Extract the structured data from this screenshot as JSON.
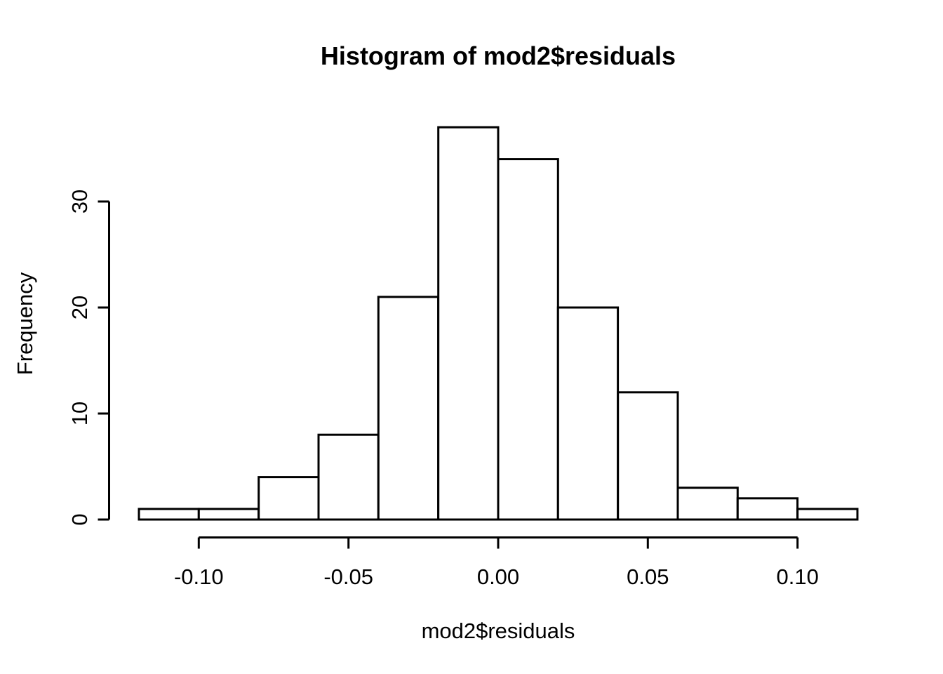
{
  "figure": {
    "background": "#ffffff"
  },
  "chart_data": {
    "type": "bar",
    "subtype": "histogram",
    "title": "Histogram of mod2$residuals",
    "xlabel": "mod2$residuals",
    "ylabel": "Frequency",
    "bin_edges": [
      -0.12,
      -0.1,
      -0.08,
      -0.06,
      -0.04,
      -0.02,
      0.0,
      0.02,
      0.04,
      0.06,
      0.08,
      0.1,
      0.12
    ],
    "counts": [
      1,
      1,
      4,
      8,
      21,
      37,
      34,
      20,
      12,
      3,
      2,
      1
    ],
    "xlim": [
      -0.12,
      0.12
    ],
    "ylim": [
      0,
      37
    ],
    "x_ticks": {
      "values": [
        -0.1,
        -0.05,
        0.0,
        0.05,
        0.1
      ],
      "labels": [
        "-0.10",
        "-0.05",
        "0.00",
        "0.05",
        "0.10"
      ]
    },
    "y_ticks": {
      "values": [
        0,
        10,
        20,
        30
      ],
      "labels": [
        "0",
        "10",
        "20",
        "30"
      ]
    },
    "grid": false,
    "legend": false,
    "colors": {
      "bar_fill": "#ffffff",
      "bar_stroke": "#000000",
      "axis": "#000000",
      "text": "#000000",
      "background": "#ffffff"
    }
  }
}
